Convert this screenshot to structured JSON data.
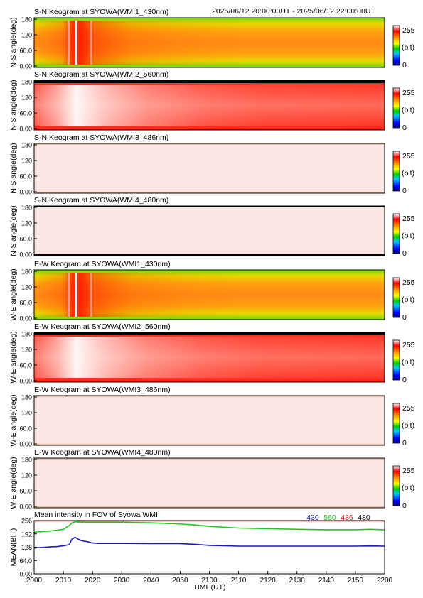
{
  "header": {
    "time_range": "2025/06/12 20:00:00UT - 2025/06/12 22:00:00UT"
  },
  "colorbar": {
    "max_label": "255",
    "unit_label": "(bit)",
    "min_label": "0"
  },
  "keograms": [
    {
      "title": "S-N Keogram at SYOWA(WMI1_430nm)",
      "ylabel": "N-S angle(deg)",
      "yticks": [
        "180",
        "120",
        "60.0",
        "0.00"
      ],
      "profile": "430"
    },
    {
      "title": "S-N Keogram at SYOWA(WMI2_560nm)",
      "ylabel": "N-S angle(deg)",
      "yticks": [
        "180",
        "120",
        "60.0",
        "0.00"
      ],
      "profile": "560"
    },
    {
      "title": "S-N Keogram at SYOWA(WMI3_486nm)",
      "ylabel": "N-S angle(deg)",
      "yticks": [
        "180",
        "120",
        "60.0",
        "0.00"
      ],
      "profile": "flat"
    },
    {
      "title": "S-N Keogram at SYOWA(WMI4_480nm)",
      "ylabel": "N-S angle(deg)",
      "yticks": [
        "180",
        "120",
        "60.0",
        "0.00"
      ],
      "profile": "flat"
    },
    {
      "title": "E-W Keogram at SYOWA(WMI1_430nm)",
      "ylabel": "W-E angle(deg)",
      "yticks": [
        "180",
        "120",
        "60.0",
        "0.00"
      ],
      "profile": "430"
    },
    {
      "title": "E-W Keogram at SYOWA(WMI2_560nm)",
      "ylabel": "W-E angle(deg)",
      "yticks": [
        "180",
        "120",
        "60.0",
        "0.00"
      ],
      "profile": "560"
    },
    {
      "title": "E-W Keogram at SYOWA(WMI3_486nm)",
      "ylabel": "W-E angle(deg)",
      "yticks": [
        "180",
        "120",
        "60.0",
        "0.00"
      ],
      "profile": "flat"
    },
    {
      "title": "E-W Keogram at SYOWA(WMI4_480nm)",
      "ylabel": "W-E angle(deg)",
      "yticks": [
        "180",
        "120",
        "60.0",
        "0.00"
      ],
      "profile": "flat"
    }
  ],
  "chart_data": {
    "type": "line",
    "title": "Mean intensity in FOV of Syowa WMI",
    "xlabel": "TIME(UT)",
    "ylabel": "MEAN(BIT)",
    "xlim": [
      0,
      120
    ],
    "ylim": [
      0,
      256
    ],
    "x_tick_labels": [
      "2000",
      "2010",
      "2020",
      "2030",
      "2040",
      "2050",
      "2100",
      "2110",
      "2120",
      "2130",
      "2140",
      "2150",
      "2200"
    ],
    "y_tick_labels": [
      "256",
      "192",
      "128",
      "64.0",
      "0.00"
    ],
    "legend": [
      "430",
      "560",
      "486",
      "480"
    ],
    "legend_colors": [
      "#1a1ab8",
      "#22c822",
      "#c81e1e",
      "#000000"
    ],
    "x_minutes": [
      0,
      3,
      6,
      8,
      10,
      12,
      13,
      14,
      16,
      18,
      20,
      22,
      30,
      40,
      50,
      55,
      60,
      70,
      80,
      90,
      100,
      110,
      115,
      120
    ],
    "series": [
      {
        "name": "430",
        "color": "#1a1ab8",
        "values": [
          125,
          127,
          130,
          131,
          135,
          140,
          168,
          175,
          160,
          155,
          148,
          146,
          146,
          145,
          145,
          142,
          137,
          133,
          133,
          133,
          133,
          133,
          134,
          133
        ]
      },
      {
        "name": "560",
        "color": "#22c822",
        "values": [
          200,
          203,
          207,
          210,
          214,
          232,
          245,
          250,
          248,
          248,
          248,
          248,
          248,
          245,
          240,
          235,
          228,
          220,
          217,
          214,
          212,
          212,
          214,
          212
        ]
      },
      {
        "name": "486",
        "color": "#c81e1e",
        "values": [
          255,
          255,
          255,
          255,
          255,
          255,
          255,
          255,
          255,
          255,
          255,
          255,
          255,
          255,
          255,
          255,
          255,
          255,
          255,
          255,
          255,
          255,
          255,
          255
        ]
      },
      {
        "name": "480",
        "color": "#000000",
        "values": [
          255,
          255,
          255,
          255,
          255,
          255,
          255,
          255,
          255,
          255,
          255,
          255,
          255,
          255,
          255,
          255,
          255,
          255,
          255,
          255,
          255,
          255,
          255,
          255
        ]
      }
    ]
  }
}
